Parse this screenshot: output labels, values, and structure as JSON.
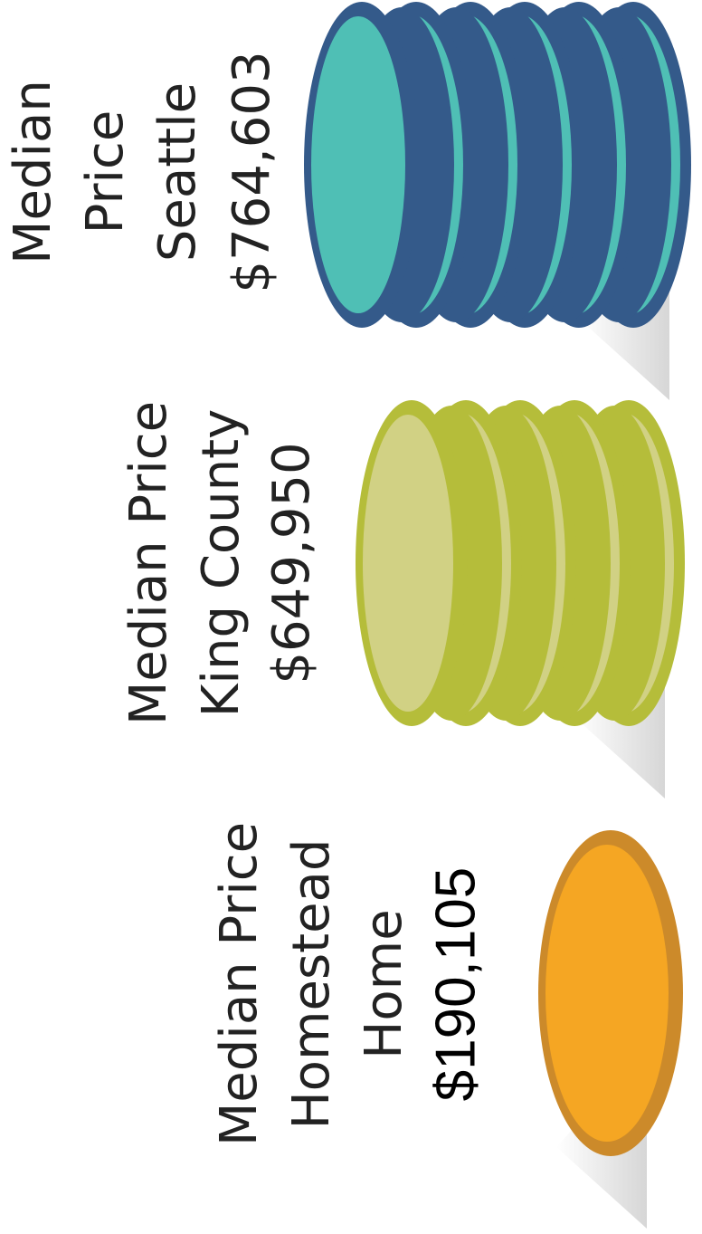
{
  "groups": [
    {
      "label": [
        "Median",
        "Price",
        "Seattle"
      ],
      "value": "$764,603"
    },
    {
      "label": [
        "Median Price",
        "King County"
      ],
      "value": "$649,950"
    },
    {
      "label": [
        "Median Price",
        "Homestead",
        "Home"
      ],
      "value": "$190,105"
    }
  ]
}
